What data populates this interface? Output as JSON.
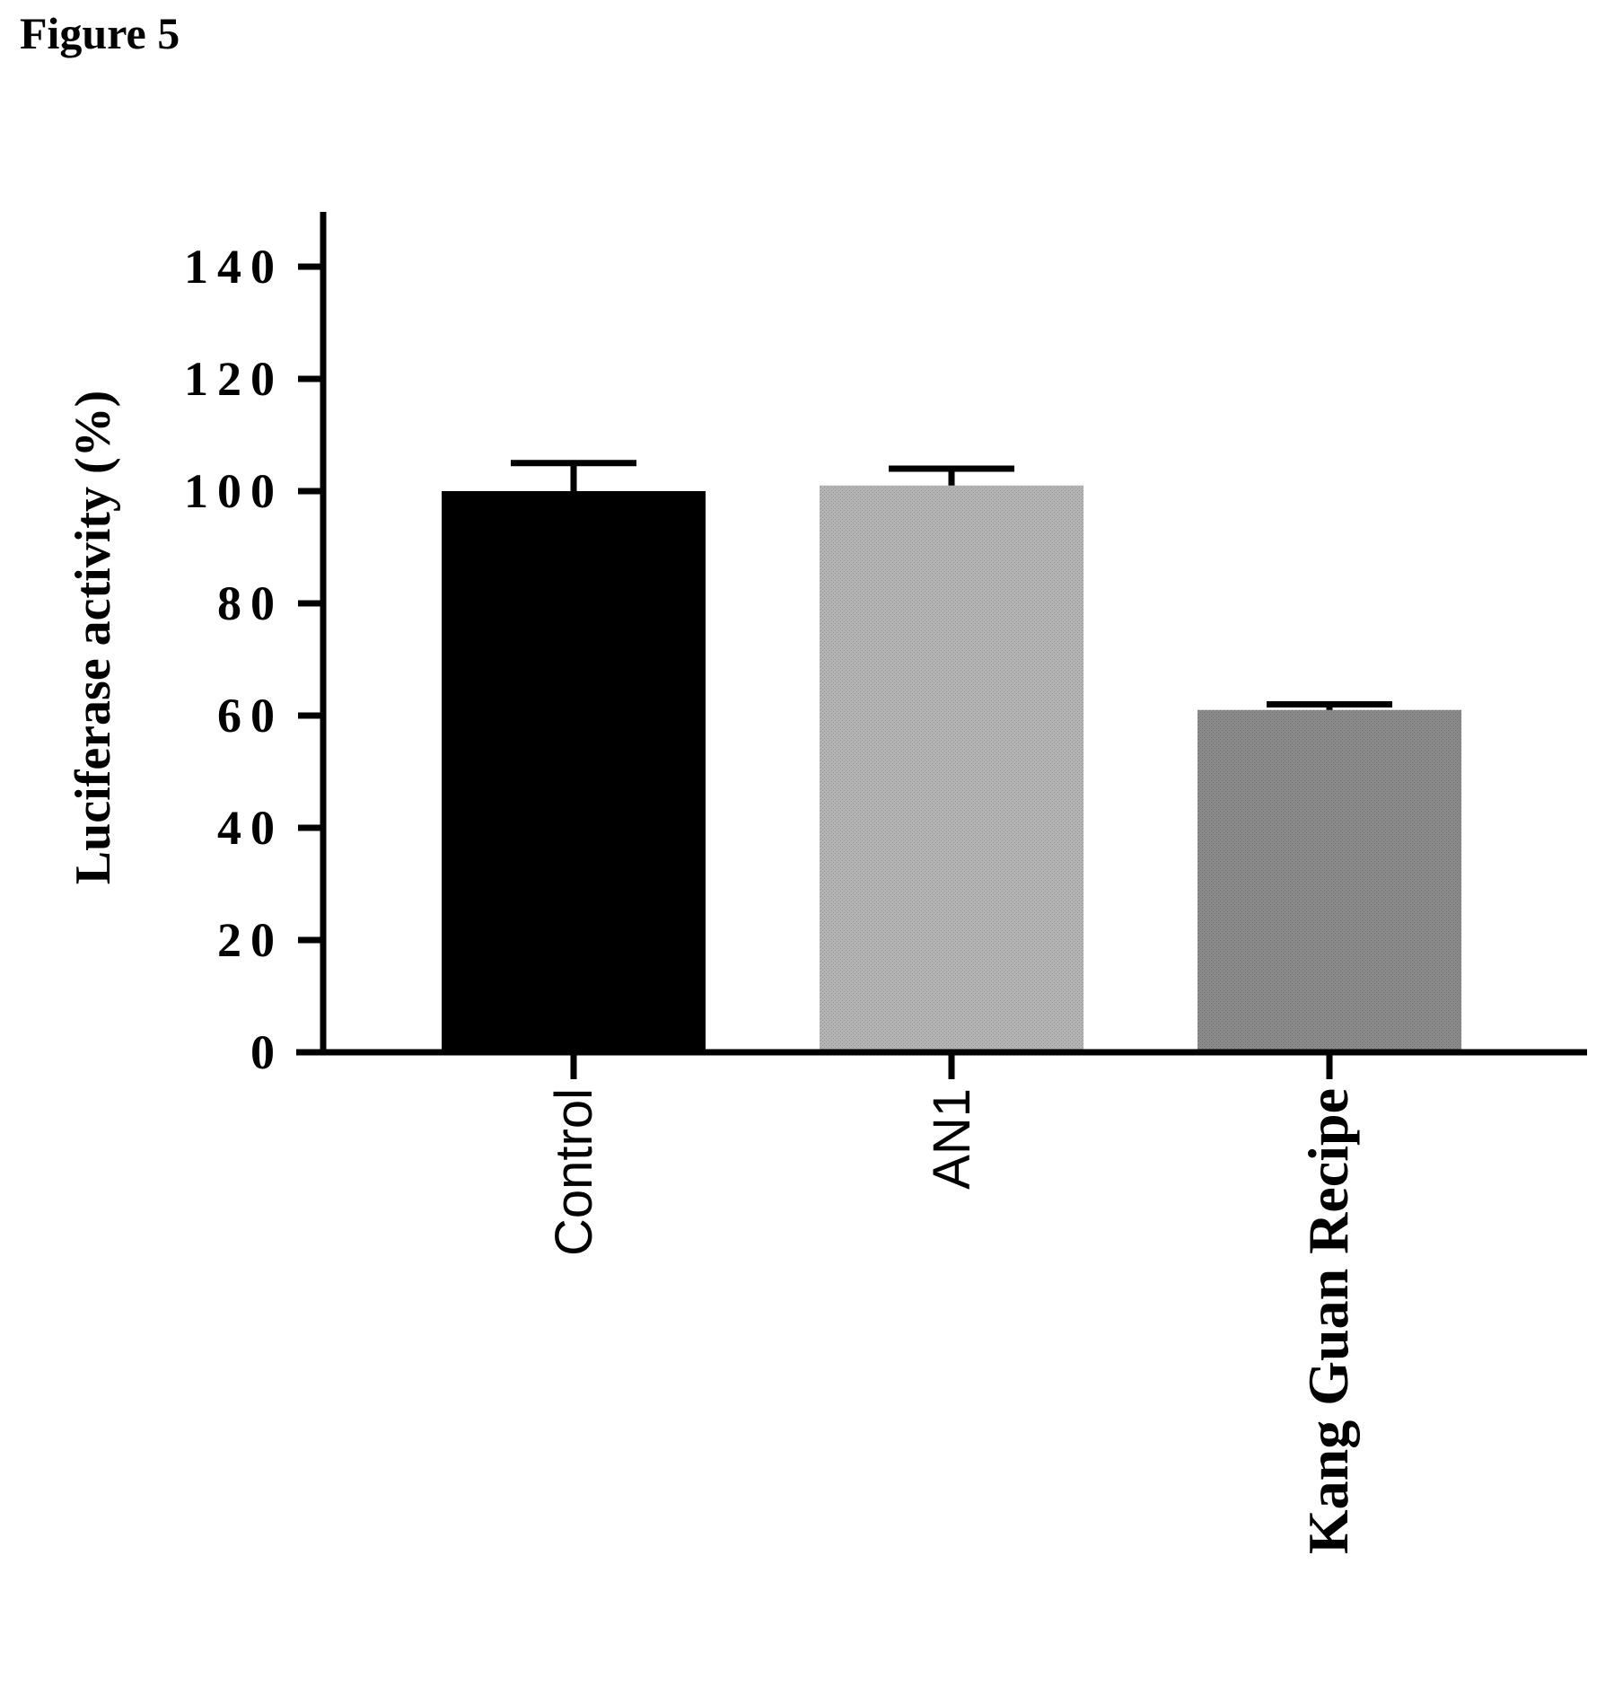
{
  "figure": {
    "title": "Figure 5"
  },
  "chart_data": {
    "type": "bar",
    "title": "",
    "xlabel": "",
    "ylabel": "Luciferase activity (%)",
    "ylim": [
      0,
      150
    ],
    "yticks": [
      0,
      20,
      40,
      60,
      80,
      100,
      120,
      140
    ],
    "ytick_labels": [
      "0",
      "20",
      "40",
      "60",
      "80",
      "100",
      "120",
      "140"
    ],
    "categories": [
      "Control",
      "AN1",
      "Kang Guan Recipe"
    ],
    "values": [
      100,
      101,
      61
    ],
    "errors": [
      5,
      3,
      1
    ],
    "bar_colors": [
      "#000000",
      "#aaaaaa",
      "#808080"
    ],
    "grid": false,
    "legend": "none"
  }
}
